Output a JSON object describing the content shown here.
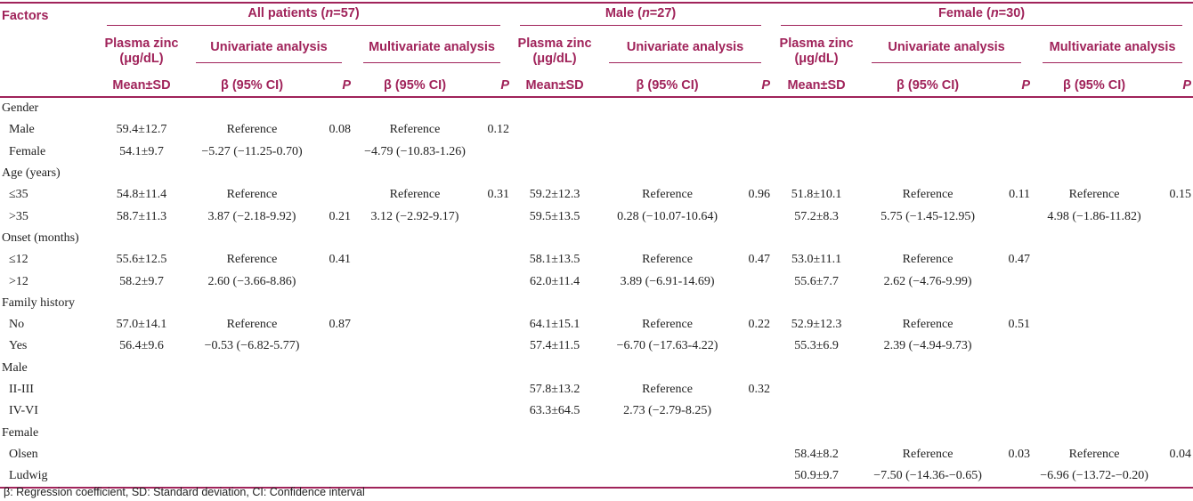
{
  "header": {
    "factors": "Factors",
    "groups": [
      {
        "label": "All patients (",
        "n": "n",
        "count": "=57)"
      },
      {
        "label": "Male (",
        "n": "n",
        "count": "=27)"
      },
      {
        "label": "Female (",
        "n": "n",
        "count": "=30)"
      }
    ],
    "plasma_zinc": "Plasma zinc",
    "plasma_unit": "(μg/dL)",
    "univariate": "Univariate analysis",
    "multivariate": "Multivariate analysis",
    "mean_sd": "Mean±SD",
    "beta_ci": "β (95% CI)",
    "p": "P"
  },
  "rows": [
    {
      "label": "Gender",
      "section": true
    },
    {
      "label": "Male",
      "all_mean": "59.4±12.7",
      "all_uni": "Reference",
      "all_uni_p": "0.08",
      "all_multi": "Reference",
      "all_multi_p": "0.12"
    },
    {
      "label": "Female",
      "all_mean": "54.1±9.7",
      "all_uni": "−5.27 (−11.25-0.70)",
      "all_multi": "−4.79 (−10.83-1.26)"
    },
    {
      "label": "Age (years)",
      "section": true
    },
    {
      "label": "≤35",
      "all_mean": "54.8±11.4",
      "all_uni": "Reference",
      "all_multi": "Reference",
      "all_multi_p": "0.31",
      "m_mean": "59.2±12.3",
      "m_uni": "Reference",
      "m_uni_p": "0.96",
      "f_mean": "51.8±10.1",
      "f_uni": "Reference",
      "f_uni_p": "0.11",
      "f_multi": "Reference",
      "f_multi_p": "0.15"
    },
    {
      "label": ">35",
      "all_mean": "58.7±11.3",
      "all_uni": "3.87 (−2.18-9.92)",
      "all_uni_p": "0.21",
      "all_multi": "3.12 (−2.92-9.17)",
      "m_mean": "59.5±13.5",
      "m_uni": "0.28 (−10.07-10.64)",
      "f_mean": "57.2±8.3",
      "f_uni": "5.75 (−1.45-12.95)",
      "f_multi": "4.98 (−1.86-11.82)"
    },
    {
      "label": "Onset (months)",
      "section": true
    },
    {
      "label": "≤12",
      "all_mean": "55.6±12.5",
      "all_uni": "Reference",
      "all_uni_p": "0.41",
      "m_mean": "58.1±13.5",
      "m_uni": "Reference",
      "m_uni_p": "0.47",
      "f_mean": "53.0±11.1",
      "f_uni": "Reference",
      "f_uni_p": "0.47"
    },
    {
      "label": ">12",
      "all_mean": "58.2±9.7",
      "all_uni": "2.60 (−3.66-8.86)",
      "m_mean": "62.0±11.4",
      "m_uni": "3.89 (−6.91-14.69)",
      "f_mean": "55.6±7.7",
      "f_uni": "2.62 (−4.76-9.99)"
    },
    {
      "label": "Family history",
      "section": true
    },
    {
      "label": "No",
      "all_mean": "57.0±14.1",
      "all_uni": "Reference",
      "all_uni_p": "0.87",
      "m_mean": "64.1±15.1",
      "m_uni": "Reference",
      "m_uni_p": "0.22",
      "f_mean": "52.9±12.3",
      "f_uni": "Reference",
      "f_uni_p": "0.51"
    },
    {
      "label": "Yes",
      "all_mean": "56.4±9.6",
      "all_uni": "−0.53 (−6.82-5.77)",
      "m_mean": "57.4±11.5",
      "m_uni": "−6.70 (−17.63-4.22)",
      "f_mean": "55.3±6.9",
      "f_uni": "2.39 (−4.94-9.73)"
    },
    {
      "label": "Male",
      "section": true
    },
    {
      "label": "II-III",
      "m_mean": "57.8±13.2",
      "m_uni": "Reference",
      "m_uni_p": "0.32"
    },
    {
      "label": "IV-VI",
      "m_mean": "63.3±64.5",
      "m_uni": "2.73 (−2.79-8.25)"
    },
    {
      "label": "Female",
      "section": true
    },
    {
      "label": "Olsen",
      "f_mean": "58.4±8.2",
      "f_uni": "Reference",
      "f_uni_p": "0.03",
      "f_multi": "Reference",
      "f_multi_p": "0.04"
    },
    {
      "label": "Ludwig",
      "f_mean": "50.9±9.7",
      "f_uni": "−7.50 (−14.36-−0.65)",
      "f_multi": "−6.96 (−13.72-−0.20)"
    }
  ],
  "footnote": "β: Regression coefficient, SD: Standard deviation, CI: Confidence interval",
  "colors": {
    "accent": "#a0235a",
    "text": "#222222"
  }
}
